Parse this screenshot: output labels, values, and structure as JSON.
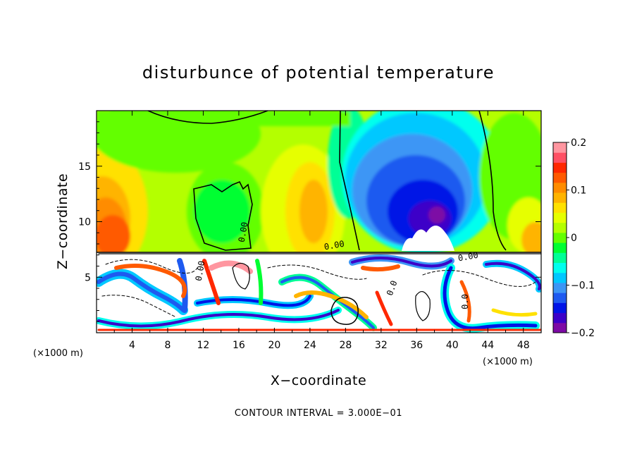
{
  "chart_data": {
    "type": "heatmap",
    "title": "disturbunce of potential temperature",
    "xlabel": "X−coordinate",
    "ylabel": "Z−coordinate",
    "x_unit_label": "(×1000 m)",
    "z_unit_label": "(×1000 m)",
    "xlim": [
      0,
      50
    ],
    "zlim": [
      0,
      20
    ],
    "x_ticks": [
      "4",
      "8",
      "12",
      "16",
      "20",
      "24",
      "28",
      "32",
      "36",
      "40",
      "44",
      "48"
    ],
    "z_ticks": [
      "5",
      "10",
      "15"
    ],
    "colorbar": {
      "range": [
        -0.2,
        0.2
      ],
      "labels": [
        "0.2",
        "0.1",
        "0",
        "−0.1",
        "−0.2"
      ],
      "colors": [
        "#7d0aa5",
        "#3c00c8",
        "#0014e6",
        "#1e5af0",
        "#3c96f5",
        "#00c8ff",
        "#00ffee",
        "#00ff96",
        "#00ff32",
        "#64ff00",
        "#b4ff00",
        "#e6ff00",
        "#ffe100",
        "#ffb400",
        "#ff8c00",
        "#ff5a00",
        "#ff2800",
        "#ff5064",
        "#ff96a0"
      ]
    },
    "contour_labels": [
      "0.00",
      "0.00",
      "0.00",
      "0.00",
      "0.0",
      "0.0"
    ],
    "contour_interval_text": "CONTOUR INTERVAL = 3.000E−01"
  }
}
